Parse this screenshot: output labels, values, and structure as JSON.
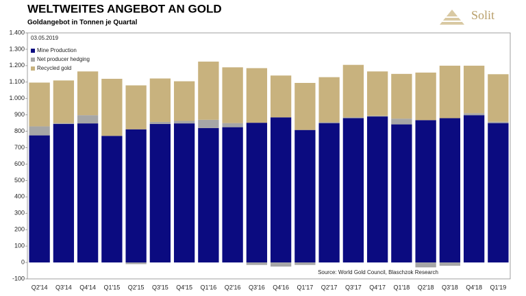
{
  "header": {
    "title": "WELTWEITES ANGEBOT AN GOLD",
    "subtitle": "Goldangebot in Tonnen je Quartal",
    "logo": "Solit"
  },
  "chart_data": {
    "type": "stacked_bar",
    "date_note": "03.05.2019",
    "source": "Source: World Gold Council, Blaschzok Research",
    "categories": [
      "Q2'14",
      "Q3'14",
      "Q4'14",
      "Q1'15",
      "Q2'15",
      "Q3'15",
      "Q4'15",
      "Q1'16",
      "Q2'16",
      "Q3'16",
      "Q4'16",
      "Q1'17",
      "Q2'17",
      "Q3'17",
      "Q4'17",
      "Q1'18",
      "Q2'18",
      "Q3'18",
      "Q4'18",
      "Q1'19"
    ],
    "series": [
      {
        "name": "Mine Production",
        "color": "#0b0b80",
        "values": [
          775,
          845,
          848,
          772,
          812,
          845,
          848,
          820,
          825,
          852,
          885,
          808,
          850,
          880,
          890,
          842,
          868,
          880,
          898,
          850
        ]
      },
      {
        "name": "Net producer hedging",
        "color": "#a6a6a6",
        "values": [
          55,
          5,
          50,
          0,
          -10,
          12,
          15,
          50,
          25,
          -15,
          -25,
          -15,
          5,
          5,
          5,
          35,
          -30,
          -20,
          12,
          8
        ]
      },
      {
        "name": "Recycled gold",
        "color": "#c8b27e",
        "values": [
          267,
          260,
          267,
          348,
          268,
          265,
          242,
          355,
          340,
          333,
          255,
          287,
          275,
          320,
          270,
          273,
          290,
          320,
          290,
          290
        ]
      }
    ],
    "ylim": [
      -100,
      1400
    ],
    "yticks": [
      -100,
      0,
      100,
      200,
      300,
      400,
      500,
      600,
      700,
      800,
      900,
      {
        "value": 1000,
        "label": "1.000"
      },
      {
        "value": 1100,
        "label": "1.100"
      },
      {
        "value": 1200,
        "label": "1.200"
      },
      {
        "value": 1300,
        "label": "1.300"
      },
      {
        "value": 1400,
        "label": "1.400"
      }
    ],
    "grid": false,
    "legend": "top-left"
  }
}
